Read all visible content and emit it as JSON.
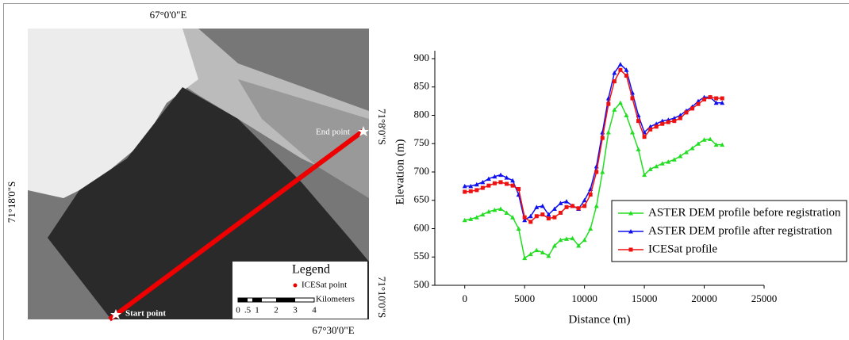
{
  "map": {
    "top_label": "67°0'0\"E",
    "bottom_label": "67°30'0\"E",
    "left_label": "71°18'0\"S",
    "right_top_label": "71°8'0\"S",
    "right_bottom_label": "71°10'0\"S",
    "end_label": "End point",
    "start_label": "Start point",
    "legend_title": "Legend",
    "legend_item": "ICESat point",
    "scale_unit": "Kilometers",
    "scale_labels": [
      "0",
      ".5",
      "1",
      "2",
      "3",
      "4"
    ]
  },
  "chart_data": {
    "type": "line",
    "x_label": "Distance (m)",
    "y_label": "Elevation (m)",
    "x": [
      0,
      500,
      1000,
      1500,
      2000,
      2500,
      3000,
      3500,
      4000,
      4500,
      5000,
      5500,
      6000,
      6500,
      7000,
      7500,
      8000,
      8500,
      9000,
      9500,
      10000,
      10500,
      11000,
      11500,
      12000,
      12500,
      13000,
      13500,
      14000,
      14500,
      15000,
      15500,
      16000,
      16500,
      17000,
      17500,
      18000,
      18500,
      19000,
      19500,
      20000,
      20500,
      21000,
      21500
    ],
    "series": [
      {
        "name": "ASTER DEM profile before registration",
        "color": "#22dd22",
        "marker": "triangle",
        "values": [
          615,
          617,
          620,
          625,
          630,
          633,
          635,
          628,
          620,
          600,
          548,
          555,
          562,
          558,
          552,
          570,
          580,
          582,
          583,
          570,
          580,
          600,
          640,
          700,
          770,
          810,
          822,
          800,
          770,
          740,
          695,
          705,
          710,
          715,
          718,
          722,
          728,
          735,
          742,
          750,
          757,
          758,
          748,
          748
        ]
      },
      {
        "name": "ASTER DEM profile after registration",
        "color": "#1010ee",
        "marker": "triangle",
        "values": [
          675,
          675,
          678,
          682,
          688,
          692,
          695,
          690,
          685,
          660,
          615,
          622,
          638,
          640,
          625,
          635,
          645,
          648,
          640,
          635,
          650,
          670,
          710,
          770,
          830,
          875,
          890,
          880,
          840,
          800,
          770,
          780,
          785,
          790,
          792,
          795,
          800,
          808,
          815,
          825,
          832,
          832,
          822,
          822
        ]
      },
      {
        "name": "ICESat profile",
        "color": "#ee1111",
        "marker": "square",
        "values": [
          665,
          666,
          668,
          672,
          676,
          680,
          682,
          679,
          676,
          670,
          620,
          612,
          622,
          625,
          618,
          620,
          628,
          638,
          640,
          636,
          640,
          660,
          700,
          760,
          820,
          860,
          880,
          870,
          830,
          790,
          762,
          775,
          780,
          785,
          788,
          790,
          795,
          805,
          812,
          820,
          828,
          832,
          830,
          830
        ]
      }
    ],
    "xlim": [
      -2500,
      25000
    ],
    "xticks": [
      0,
      5000,
      10000,
      15000,
      20000,
      25000
    ],
    "ylim": [
      500,
      900
    ],
    "yticks": [
      500,
      550,
      600,
      650,
      700,
      750,
      800,
      850,
      900
    ]
  }
}
